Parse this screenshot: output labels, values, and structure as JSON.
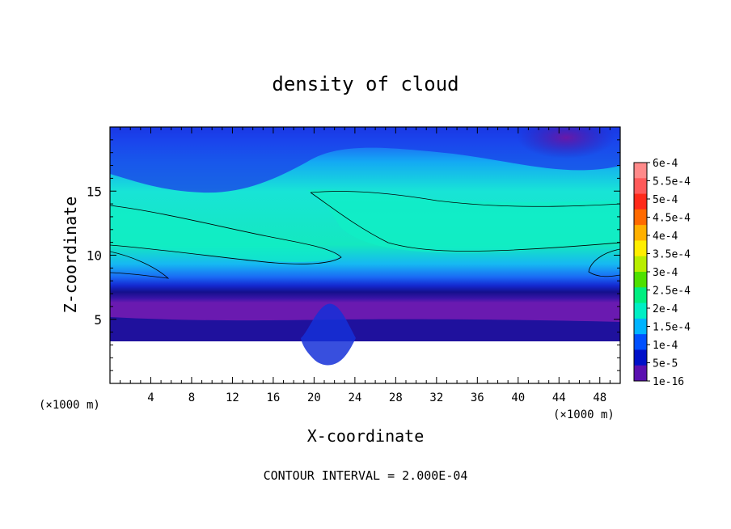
{
  "chart_data": {
    "type": "heatmap",
    "title": "density of cloud",
    "xlabel": "X-coordinate",
    "ylabel": "Z-coordinate",
    "x_unit_left": "(×1000 m)",
    "x_unit_right": "(×1000 m)",
    "xlim": [
      0,
      50
    ],
    "ylim": [
      0,
      20
    ],
    "x_ticks": [
      4,
      8,
      12,
      16,
      20,
      24,
      28,
      32,
      36,
      40,
      44,
      48
    ],
    "y_ticks": [
      5,
      10,
      15
    ],
    "footer": "CONTOUR INTERVAL = 2.000E-04",
    "colorbar": {
      "labels": [
        "6e-4",
        "5.5e-4",
        "5e-4",
        "4.5e-4",
        "4e-4",
        "3.5e-4",
        "3e-4",
        "2.5e-4",
        "2e-4",
        "1.5e-4",
        "1e-4",
        "5e-5",
        "1e-16"
      ],
      "colors": [
        "#ff8a8a",
        "#ff5a5a",
        "#ff2a1a",
        "#ff6a00",
        "#ffb000",
        "#ffee00",
        "#b8ee00",
        "#4ee000",
        "#00ee80",
        "#00eec4",
        "#00b4ff",
        "#0050ff",
        "#0010c8",
        "#5a10b0"
      ]
    },
    "contour_levels": [
      0.0002
    ],
    "surface_height_km": 3.3,
    "field_description": [
      {
        "x": [
          0,
          50
        ],
        "z": [
          3.3,
          4.5
        ],
        "level": "1e-16 to 5e-5"
      },
      {
        "x": [
          0,
          50
        ],
        "z": [
          8,
          14
        ],
        "level": "2e-4"
      },
      {
        "x": [
          22,
          50
        ],
        "z": [
          10,
          15
        ],
        "level": "2e-4"
      },
      {
        "x": [
          42,
          46
        ],
        "z": [
          18,
          20
        ],
        "level": "1e-16"
      }
    ]
  }
}
